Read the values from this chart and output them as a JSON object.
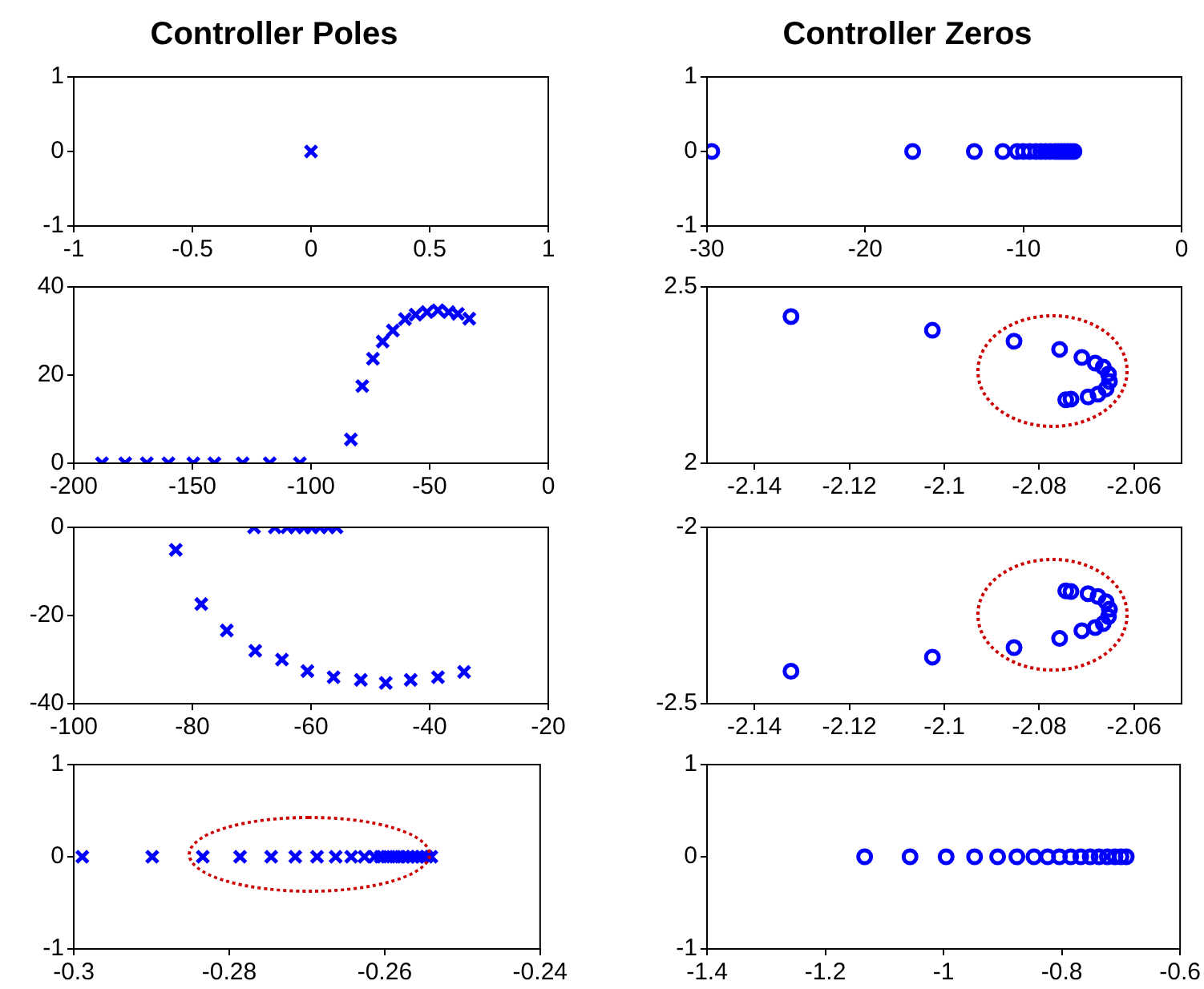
{
  "chart_data": [
    {
      "type": "scatter",
      "title": "Controller Poles",
      "color": "#0000ff",
      "marker": "cross",
      "x": [
        0
      ],
      "values": [
        0
      ],
      "xlim": [
        -1,
        1
      ],
      "xticks": [
        -1,
        -0.5,
        0,
        0.5,
        1
      ],
      "ylim": [
        -1,
        1
      ],
      "yticks": [
        -1,
        0,
        1
      ]
    },
    {
      "type": "scatter",
      "title": "Controller Zeros",
      "color": "#0000ff",
      "marker": "circle",
      "x": [
        -29.7,
        -17.0,
        -13.1,
        -11.3,
        -10.4,
        -10.0,
        -9.6,
        -9.2,
        -8.9,
        -8.6,
        -8.3,
        -8.0,
        -7.8,
        -7.6,
        -7.4,
        -7.2,
        -7.0,
        -6.8
      ],
      "values": [
        0,
        0,
        0,
        0,
        0,
        0,
        0,
        0,
        0,
        0,
        0,
        0,
        0,
        0,
        0,
        0,
        0,
        0
      ],
      "xlim": [
        -30,
        0
      ],
      "xticks": [
        -30,
        -20,
        -10,
        0
      ],
      "ylim": [
        -1,
        1
      ],
      "yticks": [
        -1,
        0,
        1
      ]
    },
    {
      "type": "scatter",
      "color": "#0000ff",
      "marker": "cross",
      "x": [
        -188.1,
        -178.3,
        -169.2,
        -160.1,
        -149.6,
        -140.7,
        -128.8,
        -117.4,
        -104.7,
        -83.2,
        -78.4,
        -73.9,
        -69.8,
        -65.5,
        -60.4,
        -55.9,
        -51.1,
        -46.5,
        -42.0,
        -38.1,
        -33.3
      ],
      "values": [
        0,
        0,
        0,
        0,
        0,
        0,
        0,
        0,
        0,
        5.4,
        17.5,
        23.7,
        27.6,
        30.1,
        32.7,
        33.7,
        34.3,
        34.7,
        34.3,
        33.9,
        32.8
      ],
      "xlim": [
        -200,
        0
      ],
      "xticks": [
        -200,
        -150,
        -100,
        -50,
        0
      ],
      "ylim": [
        0,
        40
      ],
      "yticks": [
        0,
        20,
        40
      ]
    },
    {
      "type": "scatter",
      "color": "#0000ff",
      "marker": "circle",
      "x": [
        -2.1323,
        -2.1025,
        -2.0853,
        -2.0757,
        -2.071,
        -2.0682,
        -2.0665,
        -2.0654,
        -2.0652,
        -2.0659,
        -2.0676,
        -2.0697,
        -2.0733,
        -2.0744
      ],
      "values": [
        2.416,
        2.377,
        2.346,
        2.323,
        2.3,
        2.284,
        2.273,
        2.253,
        2.232,
        2.211,
        2.196,
        2.188,
        2.182,
        2.18
      ],
      "xlim": [
        -2.15,
        -2.05
      ],
      "xticks": [
        -2.14,
        -2.12,
        -2.1,
        -2.08,
        -2.06
      ],
      "ylim": [
        2,
        2.5
      ],
      "yticks": [
        2,
        2.5
      ]
    },
    {
      "type": "scatter",
      "color": "#0000ff",
      "marker": "cross",
      "x": [
        -82.8,
        -78.5,
        -74.2,
        -69.4,
        -64.9,
        -60.6,
        -56.2,
        -51.6,
        -47.4,
        -43.2,
        -38.6,
        -34.2,
        -69.6,
        -66.1,
        -64.0,
        -62.6,
        -61.2,
        -59.9,
        -58.5,
        -57.1,
        -55.7
      ],
      "values": [
        -5.1,
        -17.4,
        -23.4,
        -28.0,
        -30.0,
        -32.6,
        -34.0,
        -34.6,
        -35.3,
        -34.6,
        -34.0,
        -32.8,
        0,
        0,
        0,
        0,
        0,
        0,
        0,
        0,
        0
      ],
      "xlim": [
        -100,
        -20
      ],
      "xticks": [
        -100,
        -80,
        -60,
        -40,
        -20
      ],
      "ylim": [
        -40,
        0
      ],
      "yticks": [
        -40,
        -20,
        0
      ]
    },
    {
      "type": "scatter",
      "color": "#0000ff",
      "marker": "circle",
      "x": [
        -2.1323,
        -2.1025,
        -2.0853,
        -2.0757,
        -2.071,
        -2.0682,
        -2.0665,
        -2.0654,
        -2.0652,
        -2.0659,
        -2.0676,
        -2.0697,
        -2.0733,
        -2.0744
      ],
      "values": [
        -2.408,
        -2.368,
        -2.341,
        -2.315,
        -2.293,
        -2.284,
        -2.273,
        -2.253,
        -2.232,
        -2.211,
        -2.196,
        -2.188,
        -2.182,
        -2.18
      ],
      "xlim": [
        -2.15,
        -2.05
      ],
      "xticks": [
        -2.14,
        -2.12,
        -2.1,
        -2.08,
        -2.06
      ],
      "ylim": [
        -2.5,
        -2
      ],
      "yticks": [
        -2.5,
        -2
      ]
    },
    {
      "type": "scatter",
      "color": "#0000ff",
      "marker": "cross",
      "x": [
        -0.2989,
        -0.2899,
        -0.2834,
        -0.2786,
        -0.2746,
        -0.2715,
        -0.2687,
        -0.2663,
        -0.2643,
        -0.2626,
        -0.2613,
        -0.2605,
        -0.2597,
        -0.259,
        -0.2583,
        -0.2576,
        -0.257,
        -0.2564,
        -0.2558,
        -0.2552,
        -0.2546,
        -0.254
      ],
      "values": [
        0,
        0,
        0,
        0,
        0,
        0,
        0,
        0,
        0,
        0,
        0,
        0,
        0,
        0,
        0,
        0,
        0,
        0,
        0,
        0,
        0,
        0
      ],
      "xlim": [
        -0.3,
        -0.24
      ],
      "xticks": [
        -0.3,
        -0.28,
        -0.26,
        -0.24
      ],
      "ylim": [
        -1,
        1
      ],
      "yticks": [
        -1,
        0,
        1
      ]
    },
    {
      "type": "scatter",
      "color": "#0000ff",
      "marker": "circle",
      "x": [
        -1.1334,
        -1.0567,
        -0.9956,
        -0.9475,
        -0.9085,
        -0.876,
        -0.847,
        -0.824,
        -0.804,
        -0.785,
        -0.768,
        -0.752,
        -0.737,
        -0.723,
        -0.71,
        -0.7,
        -0.691
      ],
      "values": [
        0,
        0,
        0,
        0,
        0,
        0,
        0,
        0,
        0,
        0,
        0,
        0,
        0,
        0,
        0,
        0,
        0
      ],
      "xlim": [
        -1.4,
        -0.6
      ],
      "xticks": [
        -1.4,
        -1.2,
        -1,
        -0.8,
        -0.6
      ],
      "ylim": [
        -1,
        1
      ],
      "yticks": [
        -1,
        0,
        1
      ]
    }
  ]
}
